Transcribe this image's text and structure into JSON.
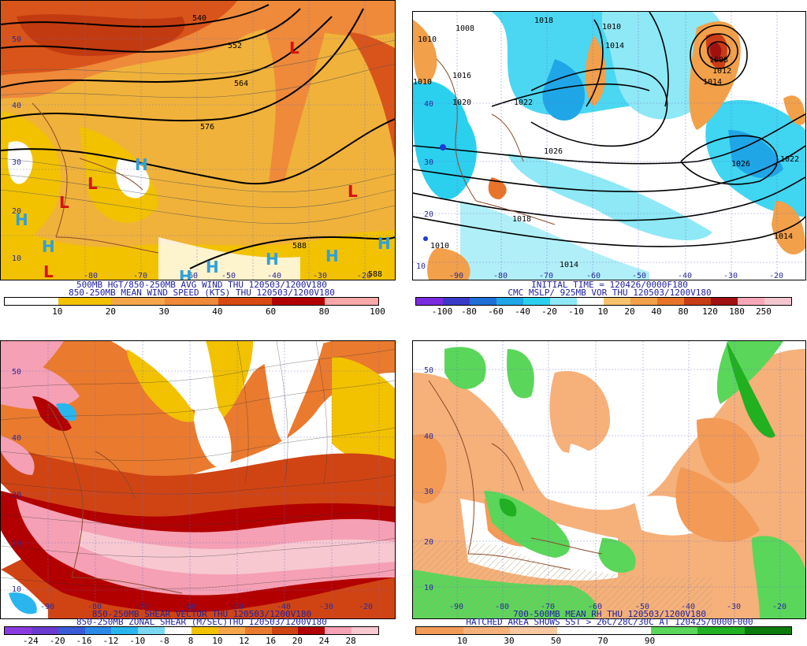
{
  "panels": {
    "tl": {
      "caption1": "500MB HGT/850-250MB AVG WIND THU 120503/1200V180",
      "caption2": "850-250MB MEAN WIND SPEED (KTS) THU 120503/1200V180",
      "ticks": [
        "10",
        "20",
        "30",
        "40",
        "60",
        "80",
        "100"
      ],
      "colors": [
        "#ffffff",
        "#f2c200",
        "#f6a64a",
        "#ee8a3a",
        "#d94a12",
        "#b30000",
        "#f7a8a8"
      ],
      "lats": [
        "50",
        "40",
        "30",
        "20",
        "10"
      ],
      "lons": [
        "-80",
        "-70",
        "-60",
        "-50",
        "-40",
        "-30",
        "-20"
      ],
      "contours": [
        "540",
        "552",
        "564",
        "576",
        "588",
        "588"
      ],
      "symbols": [
        "L",
        "L",
        "L",
        "L",
        "L",
        "H",
        "H",
        "H",
        "H",
        "H",
        "H",
        "H",
        "H"
      ]
    },
    "tr": {
      "caption1": "INITIAL TIME = 120426/0000F180",
      "caption2": "CMC MSLP/ 925MB VOR THU 120503/1200V180",
      "ticks": [
        "-100",
        "-80",
        "-60",
        "-40",
        "-20",
        "-10",
        "10",
        "20",
        "40",
        "80",
        "120",
        "180",
        "250"
      ],
      "colors": [
        "#7a2be0",
        "#3a3ac8",
        "#1e6fd8",
        "#1fa6e6",
        "#2bd0ef",
        "#8ee8f5",
        "#ffffff",
        "#f6c26b",
        "#f2a04a",
        "#e8742a",
        "#c83c16",
        "#a01010",
        "#f7a8b8",
        "#f3c6cf"
      ],
      "lats": [
        "40",
        "30",
        "20",
        "10"
      ],
      "lons": [
        "-90",
        "-80",
        "-70",
        "-60",
        "-50",
        "-40",
        "-30",
        "-20"
      ],
      "isobars": [
        "1008",
        "1018",
        "1010",
        "1010",
        "1014",
        "1016",
        "1010",
        "1020",
        "1022",
        "1008",
        "1012",
        "1014",
        "1026",
        "1026",
        "1022",
        "1018",
        "1014",
        "1010",
        "1014"
      ]
    },
    "bl": {
      "caption1": "850-250MB SHEAR VECTOR THU 120503/1200V180",
      "caption2": "850-250MB ZONAL SHEAR (M/SEC)THU 120503/1200V180",
      "ticks": [
        "-24",
        "-20",
        "-16",
        "-12",
        "-10",
        "-8",
        "8",
        "10",
        "12",
        "16",
        "20",
        "24",
        "28"
      ],
      "colors": [
        "#8a3be0",
        "#6a3ad0",
        "#3a5ad8",
        "#2a8ae8",
        "#29b6ef",
        "#7ad8f2",
        "#ffffff",
        "#f2c200",
        "#f6a64a",
        "#ea7a2e",
        "#d04414",
        "#b20000",
        "#f5a0b4",
        "#f7c8d0"
      ],
      "lats": [
        "50",
        "40",
        "30",
        "20",
        "10"
      ],
      "lons": [
        "-90",
        "-80",
        "-70",
        "-60",
        "-50",
        "-40",
        "-30",
        "-20"
      ]
    },
    "br": {
      "caption1": "700-500MB MEAN RH THU 120503/1200V180",
      "caption2": "HATCHED AREA SHOWS SST > 26C/28C/30C AT 120425/0000F000",
      "ticks": [
        "10",
        "30",
        "50",
        "70",
        "90"
      ],
      "colors": [
        "#f29a56",
        "#f6b07a",
        "#f8c8a0",
        "#ffffff",
        "#ffffff",
        "#5ad65a",
        "#20b020",
        "#0a7a0a"
      ],
      "lats": [
        "50",
        "40",
        "30",
        "20",
        "10"
      ],
      "lons": [
        "-90",
        "-80",
        "-70",
        "-60",
        "-50",
        "-40",
        "-30",
        "-20"
      ]
    }
  }
}
